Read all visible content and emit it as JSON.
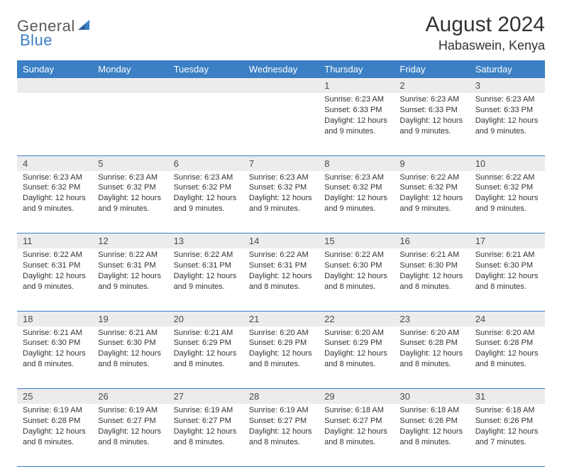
{
  "logo": {
    "text1": "General",
    "text2": "Blue"
  },
  "title": "August 2024",
  "location": "Habaswein, Kenya",
  "colors": {
    "header_bg": "#3b7fc4",
    "header_text": "#ffffff",
    "daynum_bg": "#ececec",
    "row_border": "#3b7fc4",
    "body_text": "#333333",
    "logo_gray": "#5a5a5a",
    "logo_blue": "#3b7fc4"
  },
  "weekdays": [
    "Sunday",
    "Monday",
    "Tuesday",
    "Wednesday",
    "Thursday",
    "Friday",
    "Saturday"
  ],
  "weeks": [
    [
      null,
      null,
      null,
      null,
      {
        "n": "1",
        "sr": "Sunrise: 6:23 AM",
        "ss": "Sunset: 6:33 PM",
        "d1": "Daylight: 12 hours",
        "d2": "and 9 minutes."
      },
      {
        "n": "2",
        "sr": "Sunrise: 6:23 AM",
        "ss": "Sunset: 6:33 PM",
        "d1": "Daylight: 12 hours",
        "d2": "and 9 minutes."
      },
      {
        "n": "3",
        "sr": "Sunrise: 6:23 AM",
        "ss": "Sunset: 6:33 PM",
        "d1": "Daylight: 12 hours",
        "d2": "and 9 minutes."
      }
    ],
    [
      {
        "n": "4",
        "sr": "Sunrise: 6:23 AM",
        "ss": "Sunset: 6:32 PM",
        "d1": "Daylight: 12 hours",
        "d2": "and 9 minutes."
      },
      {
        "n": "5",
        "sr": "Sunrise: 6:23 AM",
        "ss": "Sunset: 6:32 PM",
        "d1": "Daylight: 12 hours",
        "d2": "and 9 minutes."
      },
      {
        "n": "6",
        "sr": "Sunrise: 6:23 AM",
        "ss": "Sunset: 6:32 PM",
        "d1": "Daylight: 12 hours",
        "d2": "and 9 minutes."
      },
      {
        "n": "7",
        "sr": "Sunrise: 6:23 AM",
        "ss": "Sunset: 6:32 PM",
        "d1": "Daylight: 12 hours",
        "d2": "and 9 minutes."
      },
      {
        "n": "8",
        "sr": "Sunrise: 6:23 AM",
        "ss": "Sunset: 6:32 PM",
        "d1": "Daylight: 12 hours",
        "d2": "and 9 minutes."
      },
      {
        "n": "9",
        "sr": "Sunrise: 6:22 AM",
        "ss": "Sunset: 6:32 PM",
        "d1": "Daylight: 12 hours",
        "d2": "and 9 minutes."
      },
      {
        "n": "10",
        "sr": "Sunrise: 6:22 AM",
        "ss": "Sunset: 6:32 PM",
        "d1": "Daylight: 12 hours",
        "d2": "and 9 minutes."
      }
    ],
    [
      {
        "n": "11",
        "sr": "Sunrise: 6:22 AM",
        "ss": "Sunset: 6:31 PM",
        "d1": "Daylight: 12 hours",
        "d2": "and 9 minutes."
      },
      {
        "n": "12",
        "sr": "Sunrise: 6:22 AM",
        "ss": "Sunset: 6:31 PM",
        "d1": "Daylight: 12 hours",
        "d2": "and 9 minutes."
      },
      {
        "n": "13",
        "sr": "Sunrise: 6:22 AM",
        "ss": "Sunset: 6:31 PM",
        "d1": "Daylight: 12 hours",
        "d2": "and 9 minutes."
      },
      {
        "n": "14",
        "sr": "Sunrise: 6:22 AM",
        "ss": "Sunset: 6:31 PM",
        "d1": "Daylight: 12 hours",
        "d2": "and 8 minutes."
      },
      {
        "n": "15",
        "sr": "Sunrise: 6:22 AM",
        "ss": "Sunset: 6:30 PM",
        "d1": "Daylight: 12 hours",
        "d2": "and 8 minutes."
      },
      {
        "n": "16",
        "sr": "Sunrise: 6:21 AM",
        "ss": "Sunset: 6:30 PM",
        "d1": "Daylight: 12 hours",
        "d2": "and 8 minutes."
      },
      {
        "n": "17",
        "sr": "Sunrise: 6:21 AM",
        "ss": "Sunset: 6:30 PM",
        "d1": "Daylight: 12 hours",
        "d2": "and 8 minutes."
      }
    ],
    [
      {
        "n": "18",
        "sr": "Sunrise: 6:21 AM",
        "ss": "Sunset: 6:30 PM",
        "d1": "Daylight: 12 hours",
        "d2": "and 8 minutes."
      },
      {
        "n": "19",
        "sr": "Sunrise: 6:21 AM",
        "ss": "Sunset: 6:30 PM",
        "d1": "Daylight: 12 hours",
        "d2": "and 8 minutes."
      },
      {
        "n": "20",
        "sr": "Sunrise: 6:21 AM",
        "ss": "Sunset: 6:29 PM",
        "d1": "Daylight: 12 hours",
        "d2": "and 8 minutes."
      },
      {
        "n": "21",
        "sr": "Sunrise: 6:20 AM",
        "ss": "Sunset: 6:29 PM",
        "d1": "Daylight: 12 hours",
        "d2": "and 8 minutes."
      },
      {
        "n": "22",
        "sr": "Sunrise: 6:20 AM",
        "ss": "Sunset: 6:29 PM",
        "d1": "Daylight: 12 hours",
        "d2": "and 8 minutes."
      },
      {
        "n": "23",
        "sr": "Sunrise: 6:20 AM",
        "ss": "Sunset: 6:28 PM",
        "d1": "Daylight: 12 hours",
        "d2": "and 8 minutes."
      },
      {
        "n": "24",
        "sr": "Sunrise: 6:20 AM",
        "ss": "Sunset: 6:28 PM",
        "d1": "Daylight: 12 hours",
        "d2": "and 8 minutes."
      }
    ],
    [
      {
        "n": "25",
        "sr": "Sunrise: 6:19 AM",
        "ss": "Sunset: 6:28 PM",
        "d1": "Daylight: 12 hours",
        "d2": "and 8 minutes."
      },
      {
        "n": "26",
        "sr": "Sunrise: 6:19 AM",
        "ss": "Sunset: 6:27 PM",
        "d1": "Daylight: 12 hours",
        "d2": "and 8 minutes."
      },
      {
        "n": "27",
        "sr": "Sunrise: 6:19 AM",
        "ss": "Sunset: 6:27 PM",
        "d1": "Daylight: 12 hours",
        "d2": "and 8 minutes."
      },
      {
        "n": "28",
        "sr": "Sunrise: 6:19 AM",
        "ss": "Sunset: 6:27 PM",
        "d1": "Daylight: 12 hours",
        "d2": "and 8 minutes."
      },
      {
        "n": "29",
        "sr": "Sunrise: 6:18 AM",
        "ss": "Sunset: 6:27 PM",
        "d1": "Daylight: 12 hours",
        "d2": "and 8 minutes."
      },
      {
        "n": "30",
        "sr": "Sunrise: 6:18 AM",
        "ss": "Sunset: 6:26 PM",
        "d1": "Daylight: 12 hours",
        "d2": "and 8 minutes."
      },
      {
        "n": "31",
        "sr": "Sunrise: 6:18 AM",
        "ss": "Sunset: 6:26 PM",
        "d1": "Daylight: 12 hours",
        "d2": "and 7 minutes."
      }
    ]
  ]
}
